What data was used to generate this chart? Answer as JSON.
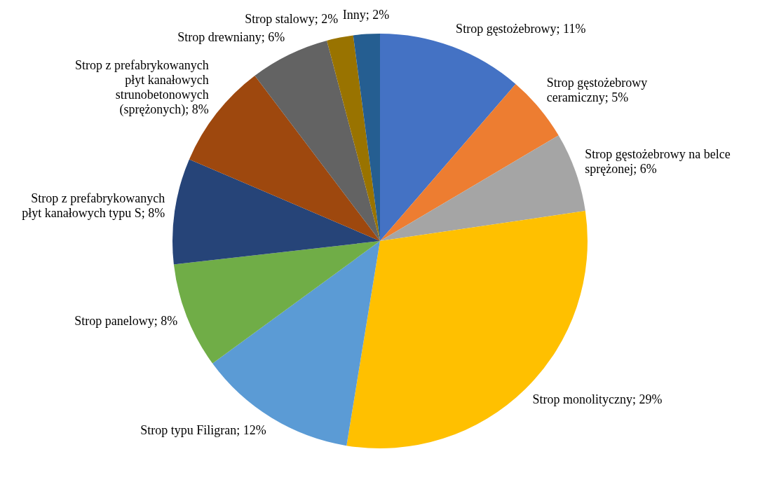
{
  "chart_data": {
    "type": "pie",
    "categories": [
      "Strop gęstożebrowy; 11%",
      "Strop gęstożebrowy ceramiczny; 5%",
      "Strop gęstożebrowy na belce sprężonej; 6%",
      "Strop monolityczny; 29%",
      "Strop typu Filigran; 12%",
      "Strop panelowy; 8%",
      "Strop z prefabrykowanych płyt kanałowych typu S; 8%",
      "Strop z prefabrykowanych płyt kanałowych strunobetonowych (sprężonych); 8%",
      "Strop drewniany; 6%",
      "Strop stalowy; 2%",
      "Inny; 2%"
    ],
    "values": [
      11,
      5,
      6,
      29,
      12,
      8,
      8,
      8,
      6,
      2,
      2
    ],
    "colors": [
      "#4472c4",
      "#ed7d31",
      "#a5a5a5",
      "#ffc000",
      "#5b9bd5",
      "#70ad47",
      "#264478",
      "#9e480e",
      "#636363",
      "#997300",
      "#255e91"
    ],
    "legend": false
  }
}
